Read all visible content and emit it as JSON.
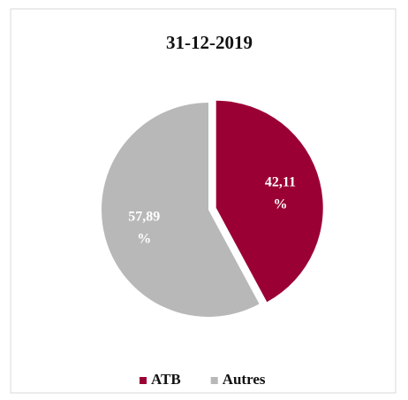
{
  "chart_data": {
    "type": "pie",
    "title": "31-12-2019",
    "categories": [
      "ATB",
      "Autres"
    ],
    "values": [
      42.11,
      57.89
    ],
    "value_labels": [
      "42,11 %",
      "57,89 %"
    ],
    "colors": [
      "#9b0034",
      "#b8b8b8"
    ],
    "legend": "bottom"
  }
}
